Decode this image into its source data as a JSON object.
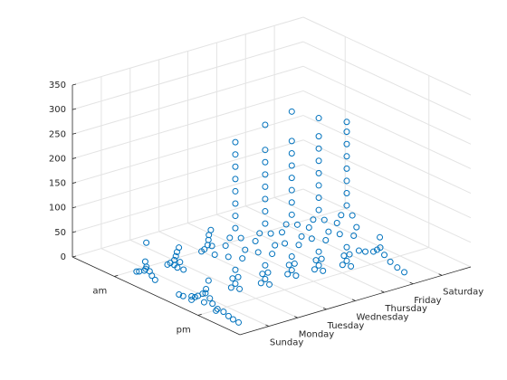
{
  "chart_data": {
    "type": "scatter3",
    "color": "#0072BD",
    "grid": true,
    "xlim": [
      0,
      8
    ],
    "xticks": [
      {
        "value": 1,
        "label": "Sunday"
      },
      {
        "value": 2,
        "label": "Monday"
      },
      {
        "value": 3,
        "label": "Tuesday"
      },
      {
        "value": 4,
        "label": "Wednesday"
      },
      {
        "value": 5,
        "label": "Thursday"
      },
      {
        "value": 6,
        "label": "Friday"
      },
      {
        "value": 7,
        "label": "Saturday"
      }
    ],
    "ylim": [
      0,
      24
    ],
    "yticks": [
      {
        "value": 6,
        "label": "am"
      },
      {
        "value": 18,
        "label": "pm"
      }
    ],
    "zlim": [
      0,
      350
    ],
    "zticks": [
      0,
      50,
      100,
      150,
      200,
      250,
      300,
      350
    ],
    "x": [
      0.5,
      0.45,
      0.55,
      0.5,
      0.48,
      0.52,
      0.5,
      0.47,
      0.53,
      0.5,
      0.48,
      0.52,
      0.5,
      0.49,
      0.51,
      0.5,
      0.5,
      0.5,
      0.46,
      0.65,
      0.62,
      0.68,
      0.65,
      0.63,
      0.67,
      0.65,
      0.64,
      0.66,
      0.65,
      1.6,
      1.58,
      1.62,
      1.6,
      1.59,
      1.61,
      1.6,
      1.6,
      1.57,
      1.63,
      2.9,
      2.88,
      2.92,
      2.9,
      2.89,
      2.91,
      2.9,
      2.9,
      1.97,
      1.97,
      1.97,
      1.97,
      1.97,
      1.97,
      1.97,
      1.97,
      1.97,
      1.97,
      1.97,
      1.97,
      1.97,
      1.97,
      1.97,
      1.97,
      1.97,
      1.97,
      1.97,
      1.97,
      2.81,
      2.81,
      2.81,
      2.81,
      2.81,
      2.81,
      2.81,
      2.81,
      2.81,
      2.81,
      2.81,
      2.81,
      2.81,
      2.81,
      2.81,
      2.81,
      2.81,
      2.81,
      2.81,
      2.81,
      3.78,
      3.78,
      3.78,
      3.78,
      3.78,
      3.78,
      3.78,
      3.78,
      3.78,
      3.78,
      3.78,
      3.78,
      3.78,
      3.78,
      3.78,
      3.78,
      3.78,
      3.78,
      3.78,
      3.78,
      4.57,
      4.57,
      4.57,
      4.57,
      4.57,
      4.57,
      4.57,
      4.57,
      4.57,
      4.57,
      4.57,
      4.57,
      4.57,
      4.57,
      4.57,
      4.57,
      4.57,
      4.57,
      4.57,
      4.57,
      5.37,
      5.37,
      5.37,
      5.37,
      5.37,
      5.37,
      5.37,
      5.37,
      5.37,
      5.37,
      5.37,
      5.37,
      5.37,
      5.37,
      5.37,
      5.37,
      5.37,
      5.37,
      5.37,
      5.37,
      6.3,
      6.28,
      6.32,
      6.3,
      6.29,
      6.31,
      6.3,
      6.3,
      6.3,
      6.3
    ],
    "y": [
      13.2,
      14,
      14.8,
      15.5,
      16,
      16.5,
      17,
      17.2,
      17.5,
      18,
      18.8,
      19.5,
      20.3,
      21,
      21.7,
      16.8,
      18.5,
      15,
      17.6,
      6.5,
      7,
      7.5,
      7.8,
      8,
      8.3,
      8.7,
      9.2,
      7.7,
      7.9,
      7,
      7.5,
      7.9,
      8.2,
      8.4,
      8.6,
      8.8,
      9.3,
      8.1,
      8.3,
      6.5,
      7,
      7.3,
      7.5,
      7.6,
      7.8,
      8,
      8.4,
      14.6,
      15.8,
      15.2,
      14.8,
      15.6,
      15.2,
      14.2,
      16.2,
      13.8,
      16.6,
      14.4,
      16,
      15.2,
      15.2,
      15.2,
      15.2,
      15.2,
      15.2,
      15.2,
      15.2,
      15.4,
      16.6,
      16,
      15.6,
      16.4,
      16,
      15,
      17,
      14.6,
      17.4,
      15.2,
      16.8,
      16,
      16,
      16,
      16,
      16,
      16,
      16,
      16,
      15.2,
      16.4,
      15.8,
      15.4,
      16.2,
      15.8,
      14.8,
      16.8,
      14.4,
      17.2,
      15,
      16.6,
      15.8,
      15.8,
      15.8,
      15.8,
      15.8,
      15.8,
      15.8,
      15.8,
      15.8,
      17,
      16.4,
      16,
      16.8,
      16.4,
      15.4,
      17.4,
      15,
      17.8,
      15.6,
      17.2,
      16.4,
      16.4,
      16.4,
      16.4,
      16.4,
      16.4,
      16.4,
      16.4,
      16.5,
      17.7,
      17.1,
      16.7,
      17.5,
      17.1,
      16.1,
      18.1,
      15.7,
      18.5,
      16.3,
      17.9,
      17.1,
      17.1,
      17.1,
      17.1,
      17.1,
      17.1,
      17.1,
      17.1,
      15,
      16,
      17,
      17.6,
      18.1,
      18.6,
      19.5,
      20.5,
      21.5,
      18
    ],
    "z": [
      2,
      5,
      8,
      12,
      18,
      25,
      30,
      40,
      22,
      15,
      10,
      8,
      5,
      3,
      1,
      10,
      4,
      3,
      60,
      2,
      6,
      10,
      16,
      22,
      14,
      8,
      3,
      30,
      70,
      3,
      10,
      18,
      28,
      38,
      48,
      20,
      8,
      10,
      5,
      4,
      12,
      22,
      34,
      45,
      56,
      25,
      10,
      0,
      5,
      12,
      20,
      28,
      40,
      60,
      70,
      80,
      90,
      100,
      110,
      125,
      150,
      175,
      200,
      225,
      250,
      275,
      300,
      0,
      5,
      12,
      20,
      28,
      40,
      60,
      70,
      80,
      90,
      100,
      110,
      125,
      150,
      175,
      200,
      225,
      250,
      275,
      326,
      0,
      5,
      12,
      20,
      28,
      40,
      60,
      70,
      80,
      90,
      100,
      110,
      125,
      150,
      175,
      200,
      225,
      250,
      275,
      335,
      0,
      5,
      12,
      20,
      28,
      40,
      60,
      70,
      80,
      90,
      100,
      110,
      125,
      150,
      175,
      200,
      225,
      250,
      275,
      312,
      0,
      5,
      12,
      20,
      28,
      40,
      60,
      70,
      80,
      90,
      100,
      110,
      125,
      150,
      175,
      200,
      225,
      250,
      275,
      295,
      3,
      8,
      14,
      22,
      30,
      18,
      10,
      5,
      2,
      50
    ]
  }
}
